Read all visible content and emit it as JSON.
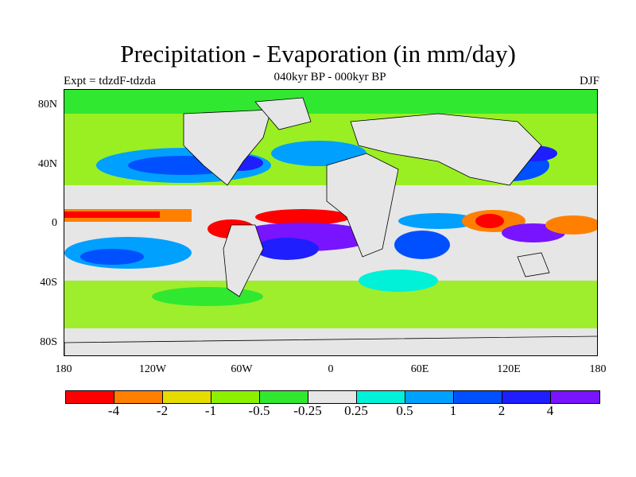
{
  "figure": {
    "title": "Precipitation - Evaporation (in mm/day)",
    "subtitle": "040kyr BP - 000kyr BP",
    "experiment": "Expt = tdzdF-tdzda",
    "season": "DJF"
  },
  "map": {
    "lat_ticks": [
      "80N",
      "40N",
      "0",
      "40S",
      "80S"
    ],
    "lon_ticks": [
      "180",
      "120W",
      "60W",
      "0",
      "60E",
      "120E",
      "180"
    ],
    "land_color": "#e6e6e6",
    "coastline_color": "#000000"
  },
  "colorbar": {
    "colors": [
      "#ff0000",
      "#ff8000",
      "#e6dc00",
      "#8cf000",
      "#30e830",
      "#e6e6e6",
      "#00f0d8",
      "#00a0ff",
      "#0050ff",
      "#1e1eff",
      "#7814ff"
    ],
    "labels": [
      "-4",
      "-2",
      "-1",
      "-0.5",
      "-0.25",
      "0.25",
      "0.5",
      "1",
      "2",
      "4"
    ]
  }
}
